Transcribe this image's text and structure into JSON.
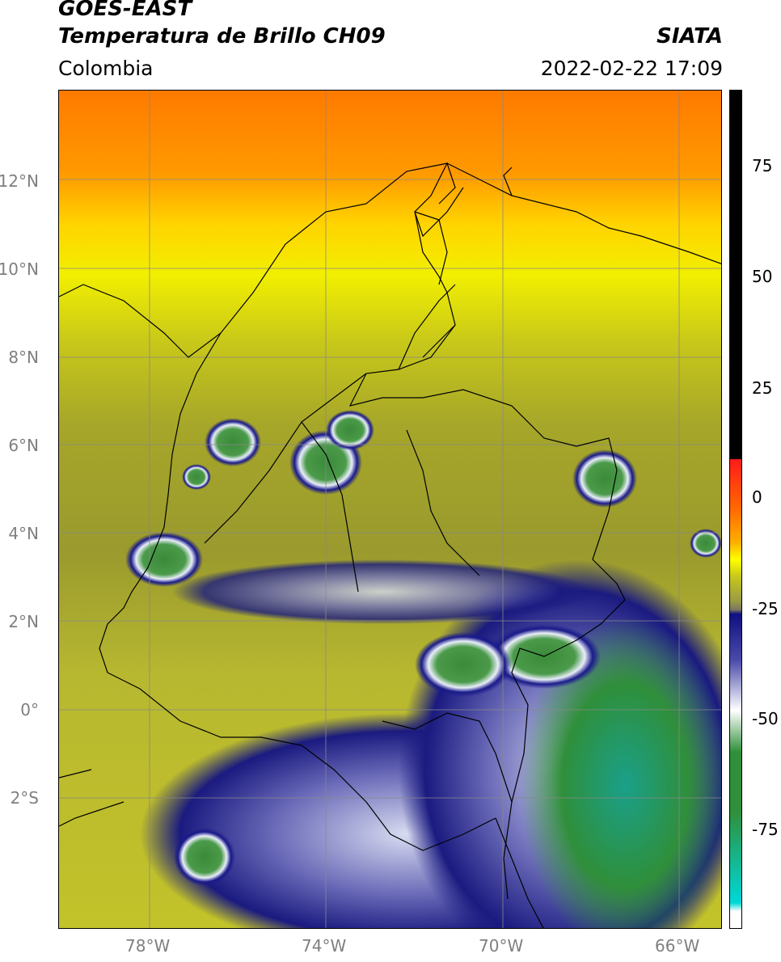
{
  "header": {
    "satellite": "GOES-EAST",
    "product": "Temperatura de Brillo CH09",
    "region": "Colombia",
    "agency": "SIATA",
    "datetime": "2022-02-22 17:09"
  },
  "axes": {
    "lat_labels": [
      "12°N",
      "10°N",
      "8°N",
      "6°N",
      "4°N",
      "2°N",
      "0°",
      "2°S"
    ],
    "lon_labels": [
      "78°W",
      "74°W",
      "70°W",
      "66°W"
    ]
  },
  "colorbar": {
    "labels": [
      "75",
      "50",
      "25",
      "0",
      "-25",
      "-50",
      "-75"
    ]
  }
}
